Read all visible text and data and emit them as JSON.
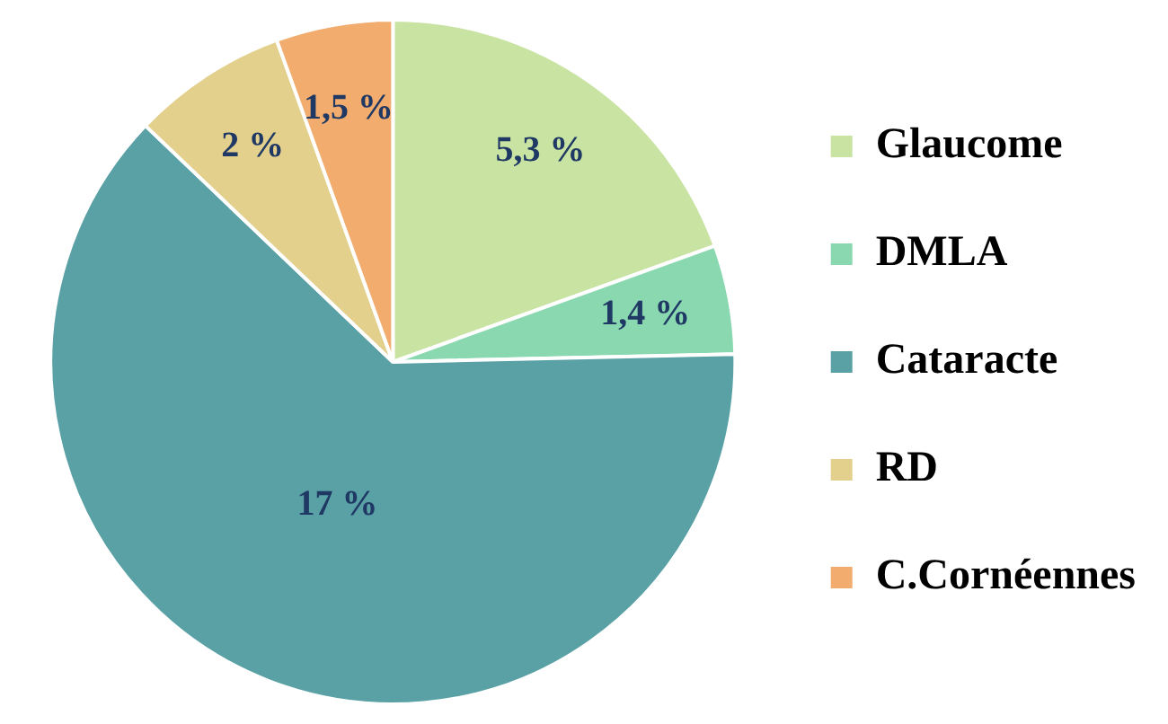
{
  "chart_data": {
    "type": "pie",
    "categories": [
      "Glaucome",
      "DMLA",
      "Cataracte",
      "RD",
      "C.Cornéennes"
    ],
    "values": [
      5.3,
      1.4,
      17,
      2,
      1.5
    ],
    "value_labels": [
      "5,3 %",
      "1,4 %",
      "17 %",
      "2 %",
      "1,5 %"
    ],
    "colors": [
      "#c9e3a3",
      "#8ad8b0",
      "#5aa1a6",
      "#e2d08c",
      "#f1ac6e"
    ],
    "legend": "right"
  }
}
